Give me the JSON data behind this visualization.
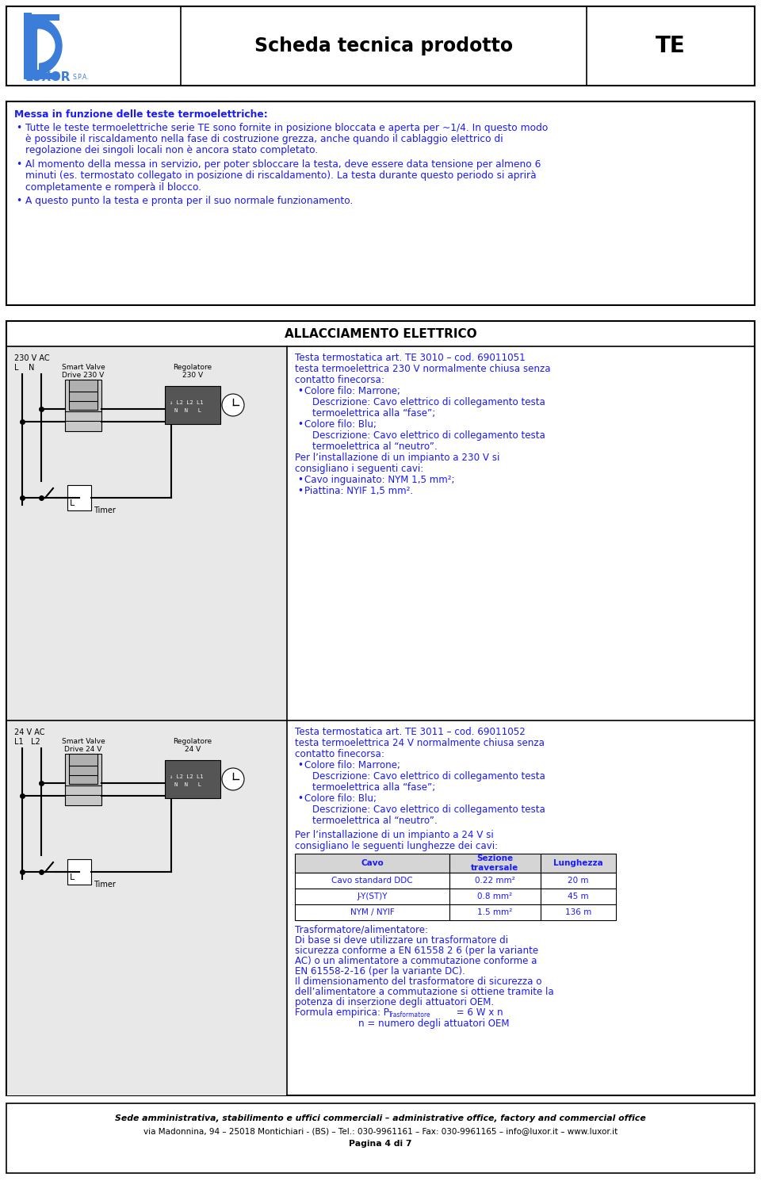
{
  "page_bg": "#ffffff",
  "border_color": "#000000",
  "blue_text": "#1a1aff",
  "black": "#000000",
  "gray_bg": "#e8e8e8",
  "title_text": "Scheda tecnica prodotto",
  "title_right": "TE",
  "header_section_title": "ALLACCIAMENTO ELETTRICO",
  "info_box_title": "Messa in funzione delle teste termoelettriche:",
  "bullet1_lines": [
    "Tutte le teste termoelettriche serie TE sono fornite in posizione bloccata e aperta per ~1/4. In questo modo",
    "è possibile il riscaldamento nella fase di costruzione grezza, anche quando il cablaggio elettrico di",
    "regolazione dei singoli locali non è ancora stato completato."
  ],
  "bullet2_lines": [
    "Al momento della messa in servizio, per poter sbloccare la testa, deve essere data tensione per almeno 6",
    "minuti (es. termostato collegato in posizione di riscaldamento). La testa durante questo periodo si aprirà",
    "completamente e romperà il blocco."
  ],
  "bullet3": "A questo punto la testa e pronta per il suo normale funzionamento.",
  "right_text1_lines": [
    "Testa termostatica art. TE 3010 – cod. 69011051",
    "testa termoelettrica 230 V normalmente chiusa senza",
    "contatto finecorsa:"
  ],
  "right_bullet1a": "Colore filo: Marrone;",
  "right_bullet1a_desc": [
    "Descrizione: Cavo elettrico di collegamento testa",
    "termoelettrica alla “fase”;"
  ],
  "right_bullet1b": "Colore filo: Blu;",
  "right_bullet1b_desc": [
    "Descrizione: Cavo elettrico di collegamento testa",
    "termoelettrica al “neutro”."
  ],
  "right_text1b_lines": [
    "Per l’installazione di un impianto a 230 V si",
    "consigliano i seguenti cavi:"
  ],
  "right_bullet1c": "Cavo inguainato: NYM 1,5 mm²;",
  "right_bullet1d": "Piattina: NYIF 1,5 mm².",
  "right_text2_lines": [
    "Testa termostatica art. TE 3011 – cod. 69011052",
    "testa termoelettrica 24 V normalmente chiusa senza",
    "contatto finecorsa:"
  ],
  "right_bullet2a": "Colore filo: Marrone;",
  "right_bullet2a_desc": [
    "Descrizione: Cavo elettrico di collegamento testa",
    "termoelettrica alla “fase”;"
  ],
  "right_bullet2b": "Colore filo: Blu;",
  "right_bullet2b_desc": [
    "Descrizione: Cavo elettrico di collegamento testa",
    "termoelettrica al “neutro”."
  ],
  "right_text2b_lines": [
    "Per l’installazione di un impianto a 24 V si",
    "consigliano le seguenti lunghezze dei cavi:"
  ],
  "table_headers": [
    "Cavo",
    "Sezione\ntraversale",
    "Lunghezza"
  ],
  "table_rows": [
    [
      "Cavo standard DDC",
      "0.22 mm²",
      "20 m"
    ],
    [
      "J-Y(ST)Y",
      "0.8 mm²",
      "45 m"
    ],
    [
      "NYM / NYIF",
      "1.5 mm²",
      "136 m"
    ]
  ],
  "transformer_lines": [
    "Trasformatore/alimentatore:",
    "Di base si deve utilizzare un trasformatore di",
    "sicurezza conforme a EN 61558 2 6 (per la variante",
    "AC) o un alimentatore a commutazione conforme a",
    "EN 61558-2-16 (per la variante DC).",
    "Il dimensionamento del trasformatore di sicurezza o",
    "dell’alimentatore a commutazione si ottiene tramite la",
    "potenza di inserzione degli attuatori OEM."
  ],
  "formula_prefix": "Formula empirica: P",
  "formula_sub": "Trasformatore",
  "formula_suffix": " = 6 W x n",
  "n_line": "n = numero degli attuatori OEM",
  "footer_line1": "Sede amministrativa, stabilimento e uffici commerciali – administrative office, factory and commercial office",
  "footer_line2": "via Madonnina, 94 – 25018 Montichiari - (BS) – Tel.: 030-9961161 – Fax: 030-9961165 – info@luxor.it – www.luxor.it",
  "footer_line3": "Pagina 4 di 7",
  "left1_volt": "230 V AC",
  "left1_ln": "L    N",
  "left1_sv": "Smart Valve\nDrive 230 V",
  "left1_reg": "Regolatore\n230 V",
  "left1_timer": "Timer",
  "left2_volt": "24 V AC",
  "left2_ln": "L1   L2",
  "left2_sv": "Smart Valve\nDrive 24 V",
  "left2_reg": "Regolatore\n24 V",
  "left2_timer": "Timer"
}
